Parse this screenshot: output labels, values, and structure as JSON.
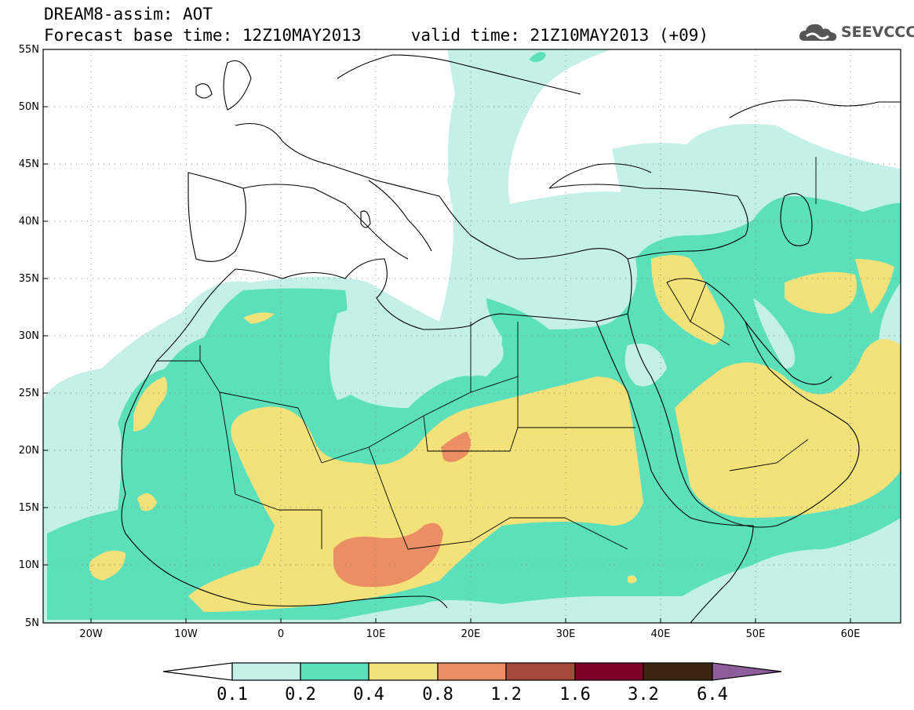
{
  "header": {
    "line1": "DREAM8-assim: AOT",
    "line2": "Forecast base time: 12Z10MAY2013     valid time: 21Z10MAY2013 (+09)"
  },
  "logo": {
    "text": "SEEVCCC",
    "icon": "cloud-logo-icon"
  },
  "map": {
    "lon_range": [
      -25,
      65
    ],
    "lat_range": [
      5,
      55
    ],
    "lat_ticks": [
      "55N",
      "50N",
      "45N",
      "40N",
      "35N",
      "30N",
      "25N",
      "20N",
      "15N",
      "10N",
      "5N"
    ],
    "lon_ticks": [
      "20W",
      "10W",
      "0",
      "10E",
      "20E",
      "30E",
      "40E",
      "50E",
      "60E"
    ]
  },
  "colorbar": {
    "labels": [
      "0.1",
      "0.2",
      "0.4",
      "0.8",
      "1.2",
      "1.6",
      "3.2",
      "6.4"
    ],
    "colors": [
      "#ffffff",
      "#c4f0e8",
      "#5ce0bc",
      "#f3e27a",
      "#ec8e63",
      "#a64a3c",
      "#7d0026",
      "#3c2412",
      "#8e5e9c"
    ]
  },
  "colors": {
    "level_0_1": "#c4f0e8",
    "level_0_2": "#5ce0bc",
    "level_0_4": "#f3e27a",
    "level_0_8": "#ec8e63"
  }
}
